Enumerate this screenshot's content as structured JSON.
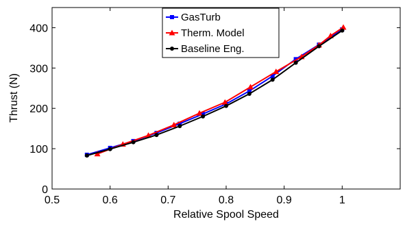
{
  "chart_data": {
    "type": "line",
    "xlabel": "Relative Spool Speed",
    "ylabel": "Thrust (N)",
    "xlim": [
      0.5,
      1.1
    ],
    "ylim": [
      0,
      450
    ],
    "xticks": [
      "0.5",
      "0.6",
      "0.7",
      "0.8",
      "0.9",
      "1"
    ],
    "yticks": [
      "0",
      "100",
      "200",
      "300",
      "400"
    ],
    "grid": false,
    "legend_position": "top-left",
    "series": [
      {
        "name": "GasTurb",
        "color": "#0000ff",
        "marker": "square",
        "x": [
          0.56,
          0.6,
          0.64,
          0.68,
          0.72,
          0.76,
          0.8,
          0.84,
          0.88,
          0.92,
          0.96,
          1.0
        ],
        "y": [
          85,
          102,
          119,
          139,
          162,
          186,
          211,
          243,
          280,
          322,
          358,
          396
        ]
      },
      {
        "name": "Therm. Model",
        "color": "#ff0000",
        "marker": "triangle",
        "x": [
          0.578,
          0.622,
          0.666,
          0.71,
          0.754,
          0.798,
          0.842,
          0.886,
          0.93,
          0.96,
          0.98,
          1.002
        ],
        "y": [
          87,
          111,
          133,
          159,
          188,
          215,
          253,
          291,
          328,
          357,
          380,
          401
        ]
      },
      {
        "name": "Baseline Eng.",
        "color": "#000000",
        "marker": "circle",
        "x": [
          0.56,
          0.6,
          0.64,
          0.68,
          0.72,
          0.76,
          0.8,
          0.84,
          0.88,
          0.92,
          0.96,
          1.0
        ],
        "y": [
          83,
          99,
          116,
          134,
          156,
          180,
          206,
          236,
          271,
          313,
          354,
          393
        ]
      }
    ]
  }
}
